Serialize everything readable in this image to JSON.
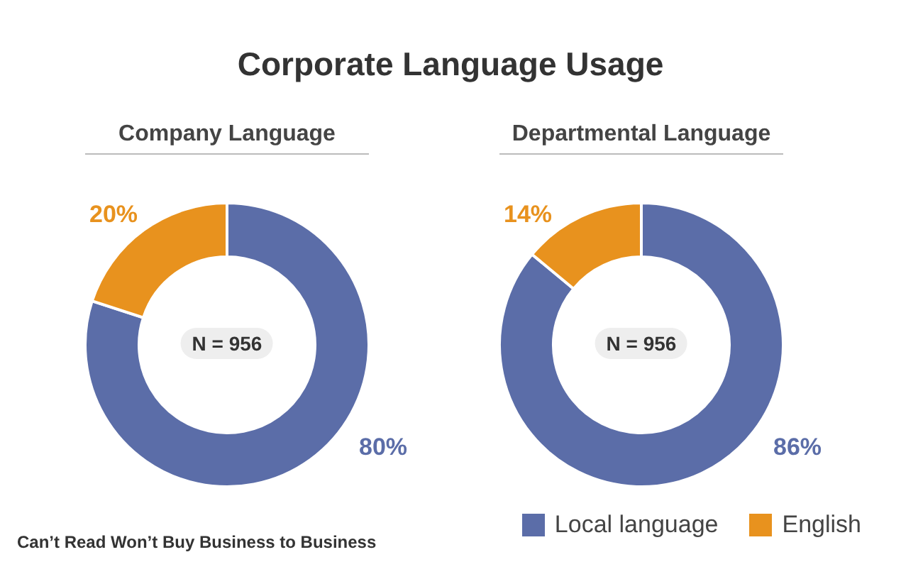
{
  "chart_data": [
    {
      "type": "donut",
      "title": "Corporate Language Usage",
      "subtitle": "Company Language",
      "categories": [
        "Local language",
        "English"
      ],
      "values": [
        80,
        20
      ],
      "colors": [
        "#5b6da8",
        "#e8921e"
      ],
      "value_labels": [
        "80%",
        "20%"
      ],
      "annotations": [
        "N = 956",
        "Can’t Read Won’t Buy Business to Business"
      ],
      "legend": "bottom right"
    },
    {
      "type": "donut",
      "subtitle": "Departmental Language",
      "categories": [
        null,
        null
      ],
      "values": [
        86,
        14
      ],
      "colors": [
        "#5b6da8",
        "#e8921e"
      ],
      "value_labels": [
        "86%",
        "14%"
      ],
      "annotations": [
        "N = 956"
      ]
    }
  ]
}
